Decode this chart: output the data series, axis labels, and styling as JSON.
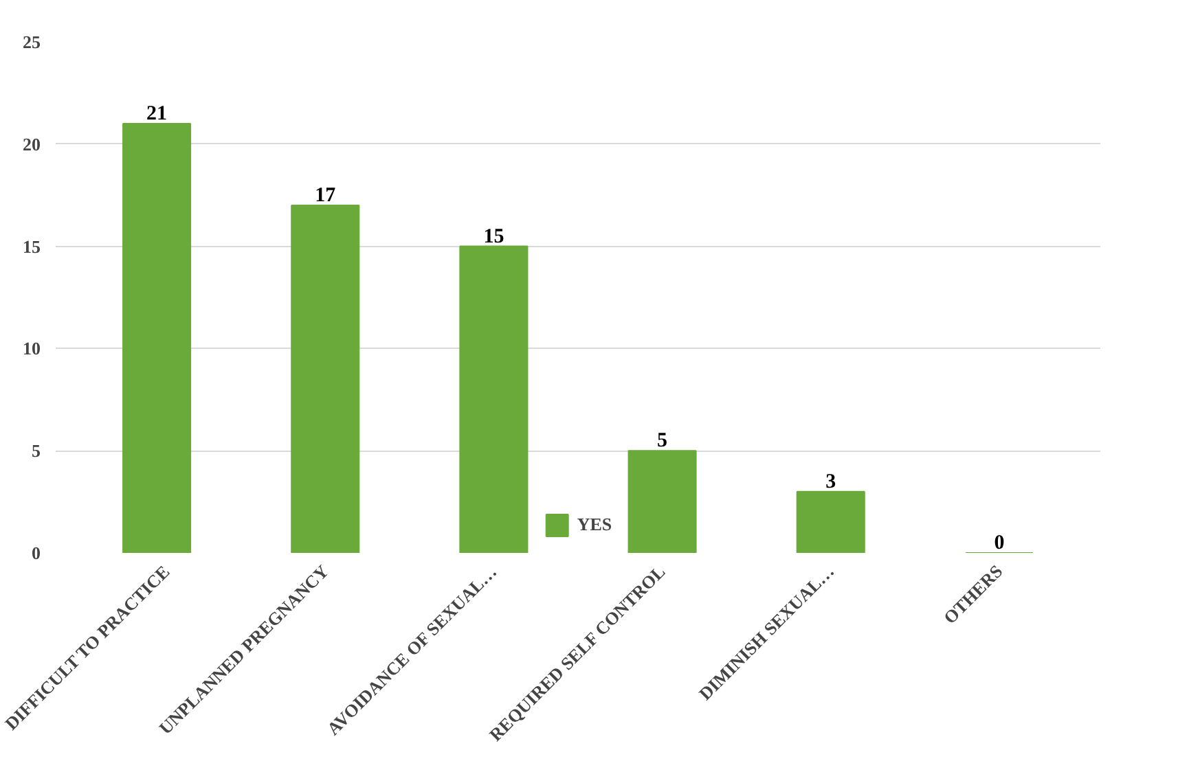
{
  "chart_data": {
    "type": "bar",
    "categories": [
      "DIFFICULT TO PRACTICE",
      "UNPLANNED PREGNANCY",
      "AVOIDANCE OF SEXUAL…",
      "REQUIRED SELF CONTROL",
      "DIMINISH SEXUAL…",
      "OTHERS"
    ],
    "series": [
      {
        "name": "YES",
        "color": "#6aaa3a",
        "values": [
          21,
          17,
          15,
          5,
          3,
          0
        ]
      }
    ],
    "ylim": [
      0,
      25
    ],
    "yticks": [
      0,
      5,
      10,
      15,
      20,
      25
    ],
    "grid": "y",
    "legend": "bottom",
    "data_labels": true
  }
}
